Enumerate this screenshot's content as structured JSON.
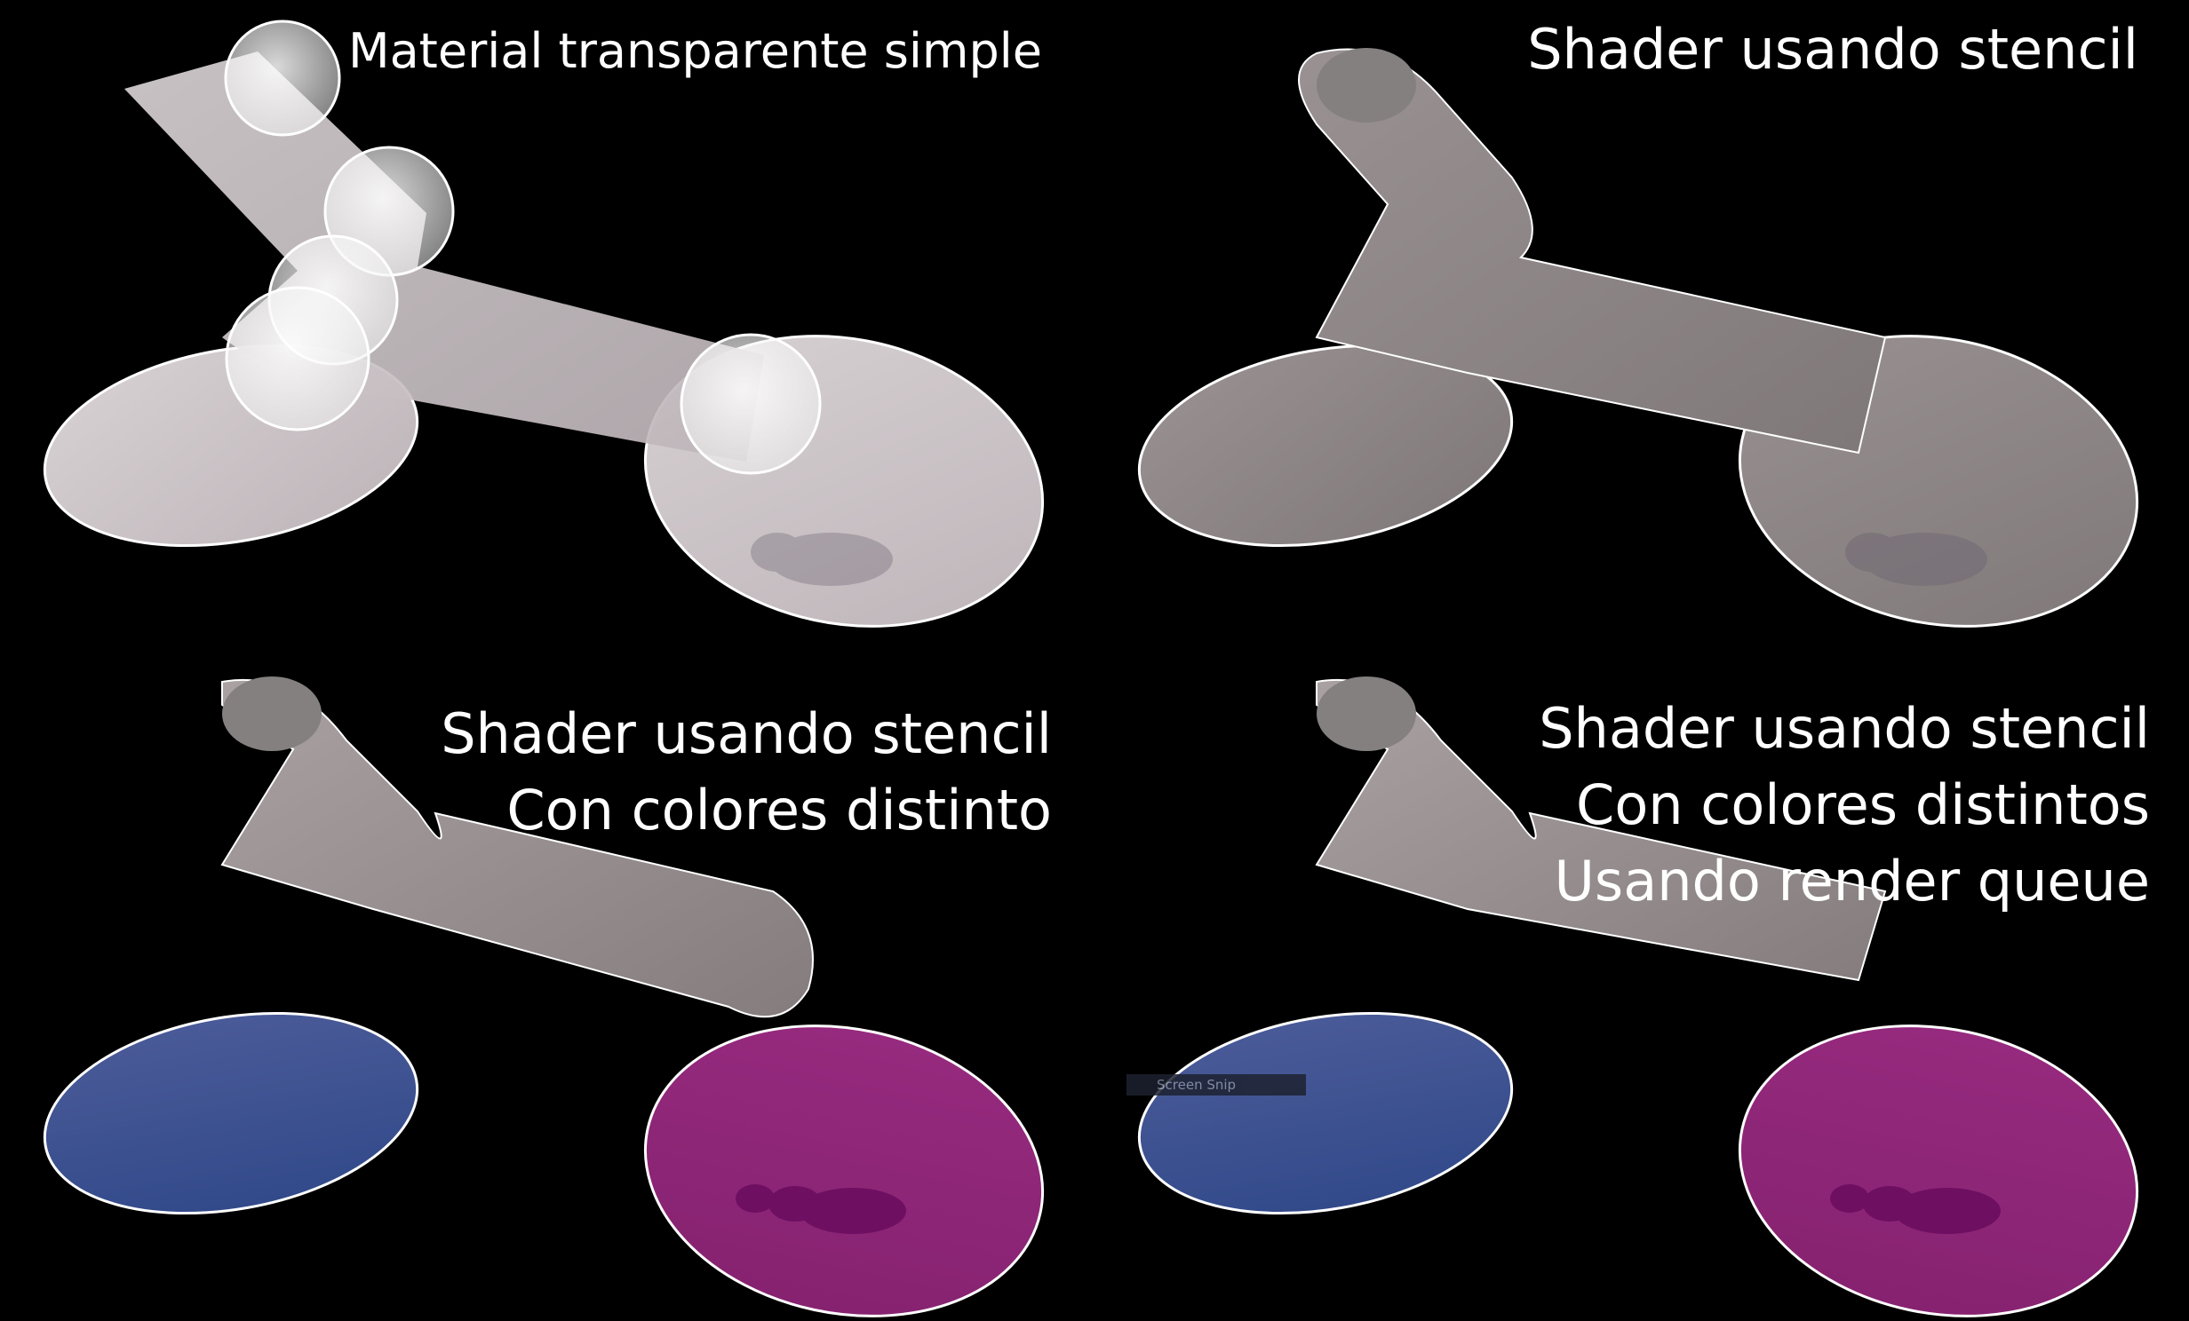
{
  "panels": [
    {
      "caption_lines": [
        "Material transparente simple"
      ],
      "mode": "transparent"
    },
    {
      "caption_lines": [
        "Shader usando stencil"
      ],
      "mode": "stencil"
    },
    {
      "caption_lines": [
        "Shader usando stencil",
        "Con colores distinto"
      ],
      "mode": "stencil-colors"
    },
    {
      "caption_lines": [
        "Shader usando stencil",
        "Con colores distintos",
        "Usando render queue"
      ],
      "mode": "stencil-queue"
    }
  ],
  "overlay": {
    "snip_label": "Screen Snip"
  },
  "colors": {
    "background": "#000000",
    "text": "#ffffff",
    "tube_light": "#cdc6c8",
    "tube_gray": "#8e8686",
    "disc_blue": "#3c5090",
    "disc_magenta": "#8c2478",
    "ant_shadow": "#6b6470",
    "ant_magenta": "#6e0f62"
  }
}
